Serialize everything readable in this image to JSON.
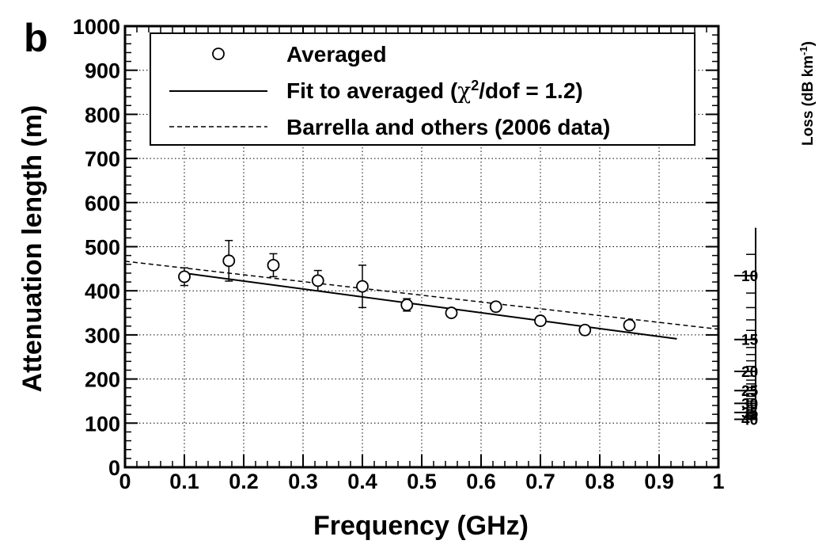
{
  "panel_label": "b",
  "chart_data": {
    "type": "scatter",
    "xlabel": "Frequency (GHz)",
    "ylabel": "Attenuation length (m)",
    "xlim": [
      0,
      1
    ],
    "ylim": [
      0,
      1000
    ],
    "grid": true,
    "x_ticks": [
      "0",
      "0.1",
      "0.2",
      "0.3",
      "0.4",
      "0.5",
      "0.6",
      "0.7",
      "0.8",
      "0.9",
      "1"
    ],
    "y_ticks": [
      "0",
      "100",
      "200",
      "300",
      "400",
      "500",
      "600",
      "700",
      "800",
      "900",
      "1000"
    ],
    "right_axis": {
      "label": "Loss (dB km",
      "label_superscript": "-1",
      "label_close": ")",
      "ticks": [
        {
          "label": "10",
          "value": 10
        },
        {
          "label": "15",
          "value": 15
        },
        {
          "label": "20",
          "value": 20
        },
        {
          "label": "25",
          "value": 25
        },
        {
          "label": "30",
          "value": 30
        },
        {
          "label": "35",
          "value": 35
        },
        {
          "label": "40",
          "value": 40
        }
      ]
    },
    "legend": {
      "placement": "top",
      "entries": [
        {
          "marker": "open-circle",
          "text": "Averaged"
        },
        {
          "marker": "solid-line",
          "text_before": "Fit to averaged (",
          "chi": "χ",
          "sup": "2",
          "text_after": "/dof = 1.2)"
        },
        {
          "marker": "dashed-line",
          "text": "Barrella and others (2006 data)"
        }
      ]
    },
    "series": [
      {
        "name": "Averaged",
        "type": "scatter",
        "points": [
          {
            "x": 0.1,
            "y": 432,
            "err_low": 412,
            "err_high": 452
          },
          {
            "x": 0.175,
            "y": 468,
            "err_low": 422,
            "err_high": 514
          },
          {
            "x": 0.25,
            "y": 458,
            "err_low": 432,
            "err_high": 484
          },
          {
            "x": 0.325,
            "y": 423,
            "err_low": 400,
            "err_high": 446
          },
          {
            "x": 0.4,
            "y": 410,
            "err_low": 362,
            "err_high": 458
          },
          {
            "x": 0.475,
            "y": 368,
            "err_low": 354,
            "err_high": 382
          },
          {
            "x": 0.55,
            "y": 350,
            "err_low": 342,
            "err_high": 358
          },
          {
            "x": 0.625,
            "y": 364,
            "err_low": 356,
            "err_high": 372
          },
          {
            "x": 0.7,
            "y": 332,
            "err_low": 322,
            "err_high": 342
          },
          {
            "x": 0.775,
            "y": 311,
            "err_low": 303,
            "err_high": 319
          },
          {
            "x": 0.85,
            "y": 322,
            "err_low": 314,
            "err_high": 330
          }
        ]
      },
      {
        "name": "Fit to averaged (χ2/dof = 1.2)",
        "type": "line",
        "style": "solid",
        "x": [
          0.1,
          0.93
        ],
        "y": [
          440,
          291
        ]
      },
      {
        "name": "Barrella and others (2006 data)",
        "type": "line",
        "style": "dashed",
        "x": [
          0.0,
          1.0
        ],
        "y": [
          467,
          313
        ]
      }
    ]
  }
}
